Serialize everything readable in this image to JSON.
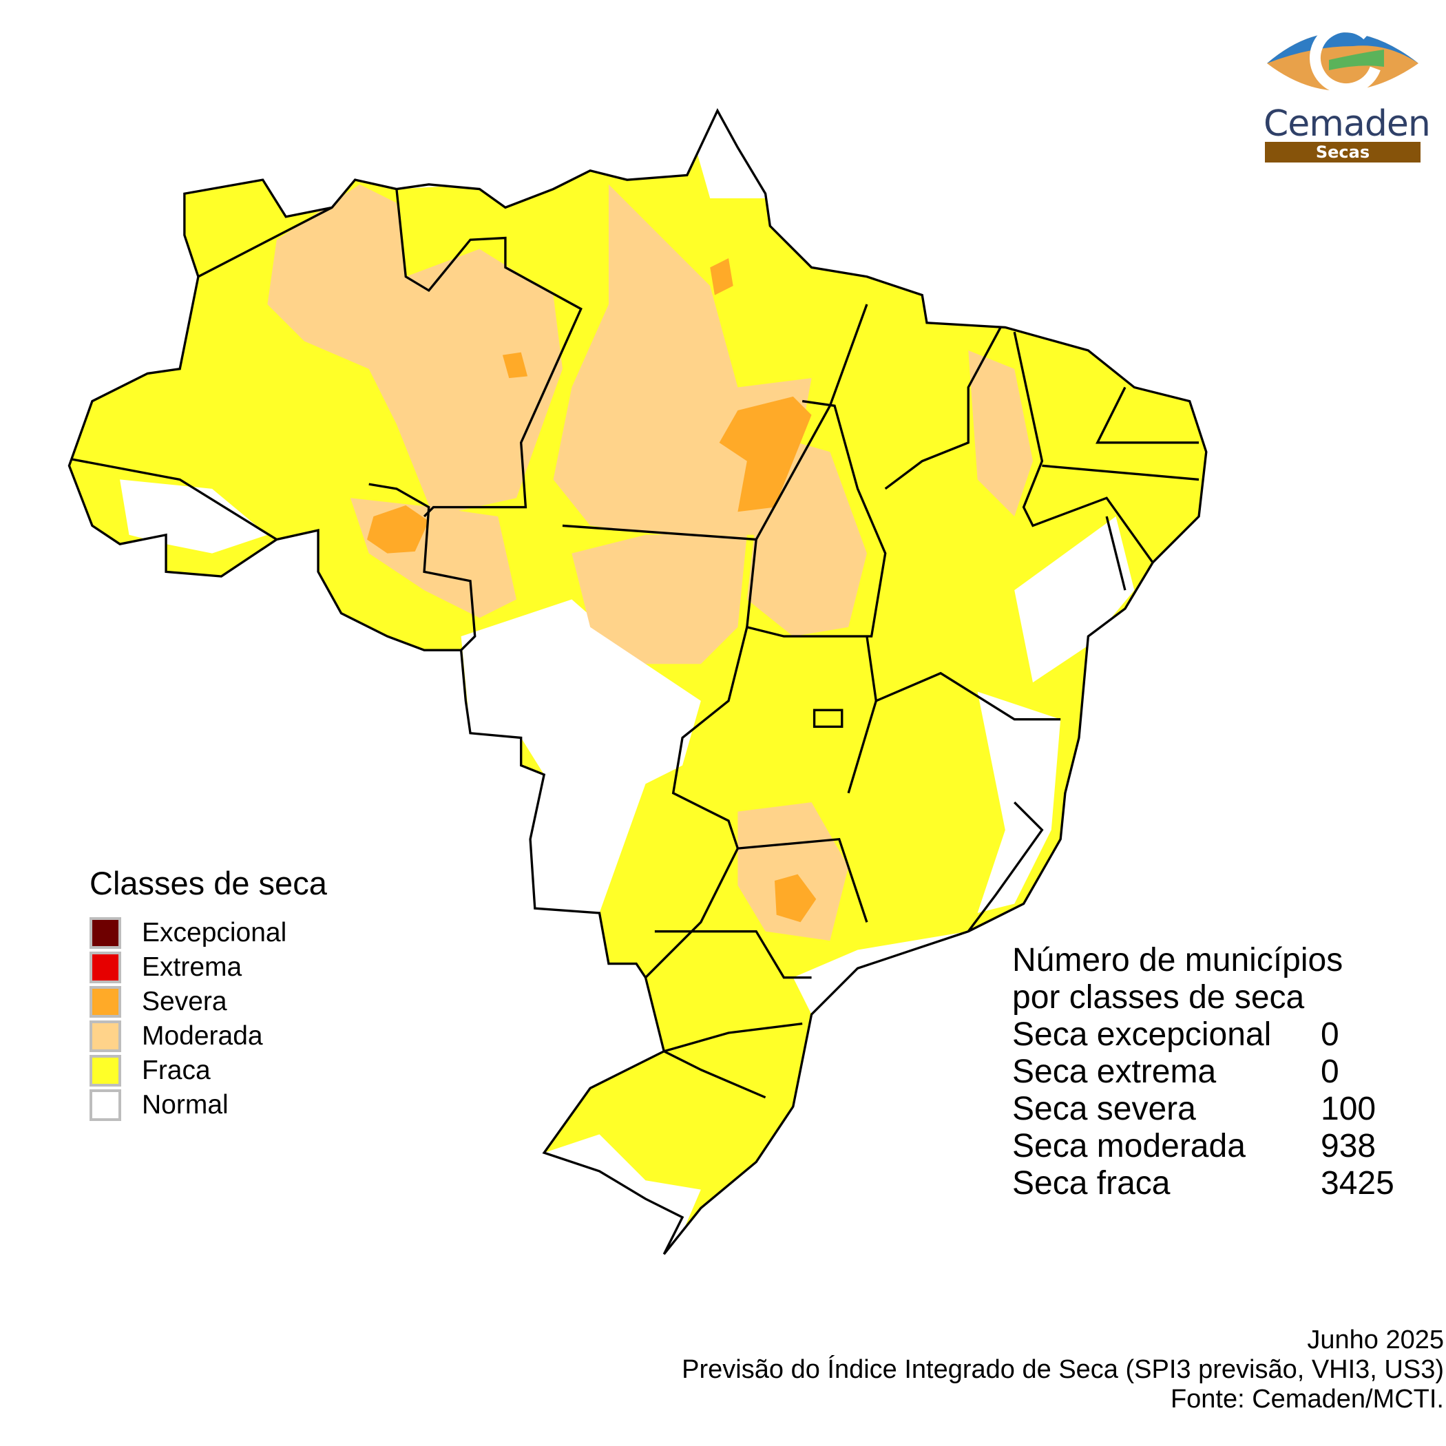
{
  "logo": {
    "name": "Cemaden",
    "subtitle": "Secas"
  },
  "legend": {
    "title": "Classes de seca",
    "items": [
      {
        "label": "Excepcional",
        "color": "#6e0000"
      },
      {
        "label": "Extrema",
        "color": "#e60000"
      },
      {
        "label": "Severa",
        "color": "#ffaa28"
      },
      {
        "label": "Moderada",
        "color": "#ffd38a"
      },
      {
        "label": "Fraca",
        "color": "#ffff28"
      },
      {
        "label": "Normal",
        "color": "#ffffff"
      }
    ]
  },
  "stats": {
    "title_line1": "Número de municípios",
    "title_line2": "por classes de seca",
    "rows": [
      {
        "label": "Seca excepcional",
        "value": "0"
      },
      {
        "label": "Seca extrema",
        "value": "0"
      },
      {
        "label": "Seca severa",
        "value": "100"
      },
      {
        "label": "Seca moderada",
        "value": "938"
      },
      {
        "label": "Seca fraca",
        "value": "3425"
      }
    ]
  },
  "footer": {
    "date": "Junho 2025",
    "product": "Previsão do Índice Integrado de Seca (SPI3 previsão, VHI3, US3)",
    "source": "Fonte: Cemaden/MCTI."
  }
}
